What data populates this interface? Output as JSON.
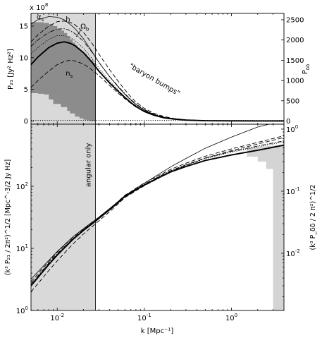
{
  "chart_data": [
    {
      "type": "line",
      "panel": "top",
      "xscale": "log",
      "xlim": [
        0.005,
        4
      ],
      "ylabel": "P₂₁ [Jy² Hz²]",
      "ylim": [
        -0.5,
        17
      ],
      "y_multiplier_label": "x 10",
      "y_multiplier_exp": "8",
      "yticks": [
        0,
        5,
        10,
        15
      ],
      "ylabel_right": "P_δδ",
      "yticks_right": [
        0,
        500,
        1000,
        1500,
        2000,
        2500
      ],
      "right_scale_per_left_unit": 156.25,
      "shaded_region": {
        "xmin": 0.005,
        "xmax": 0.0275,
        "color": "#d9d9d9"
      },
      "error_band_color": "#8c8c8c",
      "band": {
        "x": [
          0.005,
          0.006,
          0.007,
          0.008,
          0.009,
          0.01,
          0.011,
          0.012,
          0.013,
          0.014,
          0.015,
          0.016,
          0.017,
          0.018,
          0.019,
          0.02,
          0.022,
          0.024,
          0.026,
          0.0275
        ],
        "upper": [
          15.6,
          15.6,
          15.5,
          15.3,
          15.0,
          14.6,
          14.3,
          13.9,
          13.4,
          12.9,
          12.4,
          12.0,
          11.6,
          11.2,
          10.9,
          10.6,
          10.0,
          9.6,
          9.2,
          9.0
        ],
        "lower": [
          4.5,
          4.4,
          4.3,
          4.2,
          3.4,
          2.7,
          2.7,
          2.2,
          2.2,
          1.6,
          1.2,
          1.2,
          0.7,
          0.7,
          0.4,
          0.4,
          0.2,
          0.1,
          0.0,
          0.0
        ]
      },
      "series": [
        {
          "style": "bold",
          "x": [
            0.005,
            0.006,
            0.008,
            0.01,
            0.012,
            0.014,
            0.016,
            0.02,
            0.025,
            0.03,
            0.04,
            0.05,
            0.06,
            0.07,
            0.08,
            0.1,
            0.13,
            0.17,
            0.22,
            0.3,
            0.5,
            1.0,
            2.0,
            4.0
          ],
          "y": [
            8.9,
            10.1,
            11.6,
            12.3,
            12.5,
            12.3,
            11.9,
            10.8,
            9.3,
            7.9,
            6.0,
            4.7,
            3.7,
            2.9,
            2.3,
            1.5,
            0.9,
            0.5,
            0.3,
            0.15,
            0.05,
            0.02,
            0.01,
            0.005
          ]
        },
        {
          "style": "thin",
          "x": [
            0.005,
            0.006,
            0.008,
            0.01,
            0.012,
            0.014,
            0.016,
            0.02,
            0.025,
            0.03,
            0.04,
            0.05,
            0.06,
            0.07,
            0.08,
            0.1,
            0.13,
            0.17,
            0.22,
            0.3,
            0.5,
            1.0,
            2.0,
            4.0
          ],
          "y": [
            15.3,
            16.0,
            16.5,
            16.4,
            16.0,
            15.3,
            14.6,
            13.0,
            11.0,
            9.3,
            7.0,
            5.4,
            4.2,
            3.3,
            2.6,
            1.7,
            1.0,
            0.55,
            0.3,
            0.15,
            0.05,
            0.02,
            0.01,
            0.005
          ]
        },
        {
          "style": "dash",
          "x": [
            0.005,
            0.006,
            0.008,
            0.01,
            0.012,
            0.014,
            0.016,
            0.02,
            0.025,
            0.03,
            0.04,
            0.05,
            0.06,
            0.07,
            0.08,
            0.1,
            0.13,
            0.17,
            0.22,
            0.3,
            0.5,
            1.0,
            2.0,
            4.0
          ],
          "y": [
            12.5,
            13.6,
            15.0,
            15.7,
            15.8,
            15.6,
            15.2,
            14.0,
            12.3,
            10.6,
            8.1,
            6.3,
            4.9,
            3.8,
            3.0,
            2.0,
            1.2,
            0.7,
            0.4,
            0.2,
            0.07,
            0.03,
            0.01,
            0.005
          ]
        },
        {
          "style": "dash",
          "x": [
            0.005,
            0.006,
            0.008,
            0.01,
            0.012,
            0.014,
            0.016,
            0.02,
            0.025,
            0.03,
            0.04,
            0.05,
            0.06,
            0.07,
            0.08,
            0.1,
            0.13,
            0.17,
            0.22,
            0.3,
            0.5,
            1.0,
            2.0,
            4.0
          ],
          "y": [
            5.3,
            6.4,
            7.9,
            8.9,
            9.4,
            9.6,
            9.5,
            9.0,
            8.1,
            7.2,
            5.6,
            4.4,
            3.5,
            2.8,
            2.2,
            1.5,
            0.9,
            0.5,
            0.3,
            0.15,
            0.05,
            0.02,
            0.01,
            0.005
          ]
        },
        {
          "style": "dashdot",
          "x": [
            0.005,
            0.006,
            0.008,
            0.01,
            0.012,
            0.014,
            0.016,
            0.02,
            0.025,
            0.03,
            0.04,
            0.05,
            0.06,
            0.07,
            0.08,
            0.1,
            0.13,
            0.17,
            0.22,
            0.3,
            0.5,
            1.0,
            2.0,
            4.0
          ],
          "y": [
            11.8,
            12.8,
            14.0,
            14.5,
            14.6,
            14.3,
            13.8,
            12.6,
            10.9,
            9.3,
            7.0,
            5.5,
            4.3,
            3.4,
            2.7,
            1.8,
            1.1,
            0.6,
            0.35,
            0.18,
            0.06,
            0.02,
            0.01,
            0.005
          ]
        },
        {
          "style": "dot",
          "x": [
            0.005,
            0.006,
            0.008,
            0.01,
            0.012,
            0.014,
            0.016,
            0.02,
            0.025,
            0.03,
            0.04,
            0.05,
            0.06,
            0.07,
            0.08,
            0.1,
            0.13,
            0.17,
            0.22,
            0.3,
            0.5,
            1.0,
            2.0,
            4.0
          ],
          "y": [
            10.6,
            11.6,
            12.9,
            13.5,
            13.5,
            13.2,
            12.7,
            11.5,
            9.9,
            8.4,
            6.3,
            4.9,
            3.8,
            3.0,
            2.4,
            1.6,
            1.0,
            0.55,
            0.3,
            0.15,
            0.05,
            0.02,
            0.01,
            0.005
          ]
        },
        {
          "style": "dot",
          "x": [
            0.005,
            0.006,
            0.008,
            0.01,
            0.012,
            0.014,
            0.016,
            0.02,
            0.025,
            0.03,
            0.04,
            0.05,
            0.06,
            0.07,
            0.08,
            0.1,
            0.13,
            0.17,
            0.22,
            0.3,
            0.5,
            1.0,
            2.0,
            4.0
          ],
          "y": [
            0.1,
            0.1,
            0.1,
            0.1,
            0.1,
            0.1,
            0.1,
            0.1,
            0.1,
            0.1,
            0.1,
            0.1,
            0.1,
            0.1,
            0.1,
            0.1,
            0.1,
            0.1,
            0.1,
            0.1,
            0.1,
            0.1,
            0.1,
            0.1
          ]
        }
      ],
      "annotations": [
        {
          "text": "α",
          "sub": "s",
          "x": 0.0058,
          "y": 16.1
        },
        {
          "text": "h",
          "sub": "",
          "x": 0.0125,
          "y": 15.7
        },
        {
          "text": "Ω",
          "sub": "b",
          "x": 0.0185,
          "y": 14.6
        },
        {
          "text": "n",
          "sub": "s",
          "x": 0.0125,
          "y": 7.2
        },
        {
          "text": "\"baryon bumps\"",
          "sub": "",
          "x": 0.066,
          "y": 8.5,
          "rotate": 30
        }
      ]
    },
    {
      "type": "line",
      "panel": "bottom",
      "xscale": "log",
      "yscale": "log",
      "xlim": [
        0.005,
        4
      ],
      "ylim": [
        1,
        1000
      ],
      "xlabel": "k [Mpc⁻¹]",
      "xticks": [
        {
          "v": 0.01,
          "base": "10",
          "exp": "-2"
        },
        {
          "v": 0.1,
          "base": "10",
          "exp": "-1"
        },
        {
          "v": 1,
          "base": "10",
          "exp": "0"
        }
      ],
      "ylabel": "(k³ P₂₁ / 2π²)^1/2 [Mpc^-3/2 Jy Hz]",
      "yticks": [
        {
          "v": 1,
          "base": "10",
          "exp": "0"
        },
        {
          "v": 10,
          "base": "10",
          "exp": "1"
        },
        {
          "v": 100,
          "base": "10",
          "exp": "2"
        }
      ],
      "ylabel_right": "(k³ P_δδ / 2 π²)^1/2",
      "yticks_right": [
        {
          "v": 0.01,
          "base": "10",
          "exp": "-2"
        },
        {
          "v": 0.1,
          "base": "10",
          "exp": "-1"
        },
        {
          "v": 1,
          "base": "10",
          "exp": "0"
        }
      ],
      "right_ylim": [
        0.0012,
        1.2
      ],
      "shaded_region": {
        "xmin": 0.005,
        "xmax": 0.0275,
        "color": "#d9d9d9",
        "label": "angular only"
      },
      "error_band": {
        "x": [
          1.5,
          2.0,
          2.5,
          3.0,
          3.2,
          3.5,
          4.0
        ],
        "upper": [
          420,
          430,
          440,
          450,
          455,
          460,
          470
        ],
        "lower": [
          380,
          300,
          250,
          190,
          1.0,
          1.0,
          1.0
        ]
      },
      "series": [
        {
          "style": "bold",
          "x": [
            0.005,
            0.006,
            0.008,
            0.01,
            0.015,
            0.02,
            0.0275,
            0.04,
            0.05,
            0.06,
            0.07,
            0.08,
            0.1,
            0.15,
            0.2,
            0.3,
            0.5,
            1.0,
            2.0,
            4.0
          ],
          "y": [
            2.5,
            3.4,
            5.5,
            7.8,
            13.8,
            19.5,
            27.5,
            42,
            55,
            69,
            78,
            88,
            105,
            140,
            170,
            208,
            260,
            320,
            380,
            460
          ]
        },
        {
          "style": "thin",
          "x": [
            0.005,
            0.006,
            0.008,
            0.01,
            0.015,
            0.02,
            0.0275,
            0.04,
            0.05,
            0.06,
            0.07,
            0.08,
            0.1,
            0.15,
            0.2,
            0.3,
            0.5,
            1.0,
            2.0,
            4.0
          ],
          "y": [
            3.2,
            4.2,
            6.4,
            8.9,
            15.2,
            20.8,
            29,
            44,
            57,
            71,
            81,
            92,
            112,
            160,
            205,
            280,
            410,
            620,
            900,
            1150
          ]
        },
        {
          "style": "dash",
          "x": [
            0.005,
            0.006,
            0.008,
            0.01,
            0.015,
            0.02,
            0.0275,
            0.04,
            0.05,
            0.06,
            0.07,
            0.08,
            0.1,
            0.15,
            0.2,
            0.3,
            0.5,
            1.0,
            2.0,
            4.0
          ],
          "y": [
            2.9,
            3.9,
            6.1,
            8.7,
            15.0,
            20.5,
            28.5,
            43,
            57,
            72,
            82,
            93,
            113,
            152,
            187,
            235,
            305,
            400,
            510,
            650
          ]
        },
        {
          "style": "dash",
          "x": [
            0.005,
            0.006,
            0.008,
            0.01,
            0.015,
            0.02,
            0.0275,
            0.04,
            0.05,
            0.06,
            0.07,
            0.08,
            0.1,
            0.15,
            0.2,
            0.3,
            0.5,
            1.0,
            2.0,
            4.0
          ],
          "y": [
            2.0,
            2.7,
            4.4,
            6.3,
            11.6,
            17.0,
            25.0,
            39,
            52,
            66,
            75,
            85,
            102,
            138,
            172,
            217,
            285,
            375,
            480,
            610
          ]
        },
        {
          "style": "dashdot",
          "x": [
            0.005,
            0.006,
            0.008,
            0.01,
            0.015,
            0.02,
            0.0275,
            0.04,
            0.05,
            0.06,
            0.07,
            0.08,
            0.1,
            0.15,
            0.2,
            0.3,
            0.5,
            1.0,
            2.0,
            4.0
          ],
          "y": [
            2.7,
            3.6,
            5.8,
            8.2,
            14.3,
            20.0,
            28.0,
            42,
            56,
            70,
            80,
            90,
            108,
            146,
            178,
            222,
            285,
            365,
            445,
            540
          ]
        },
        {
          "style": "dot",
          "x": [
            0.005,
            0.006,
            0.008,
            0.01,
            0.015,
            0.02,
            0.0275,
            0.04,
            0.05,
            0.06,
            0.07,
            0.08,
            0.1,
            0.15,
            0.2,
            0.3,
            0.5,
            1.0,
            2.0,
            4.0
          ],
          "y": [
            2.6,
            3.5,
            5.6,
            8.0,
            14.0,
            19.8,
            27.8,
            42,
            55,
            69,
            79,
            89,
            107,
            144,
            176,
            219,
            278,
            355,
            430,
            520
          ]
        }
      ]
    }
  ]
}
